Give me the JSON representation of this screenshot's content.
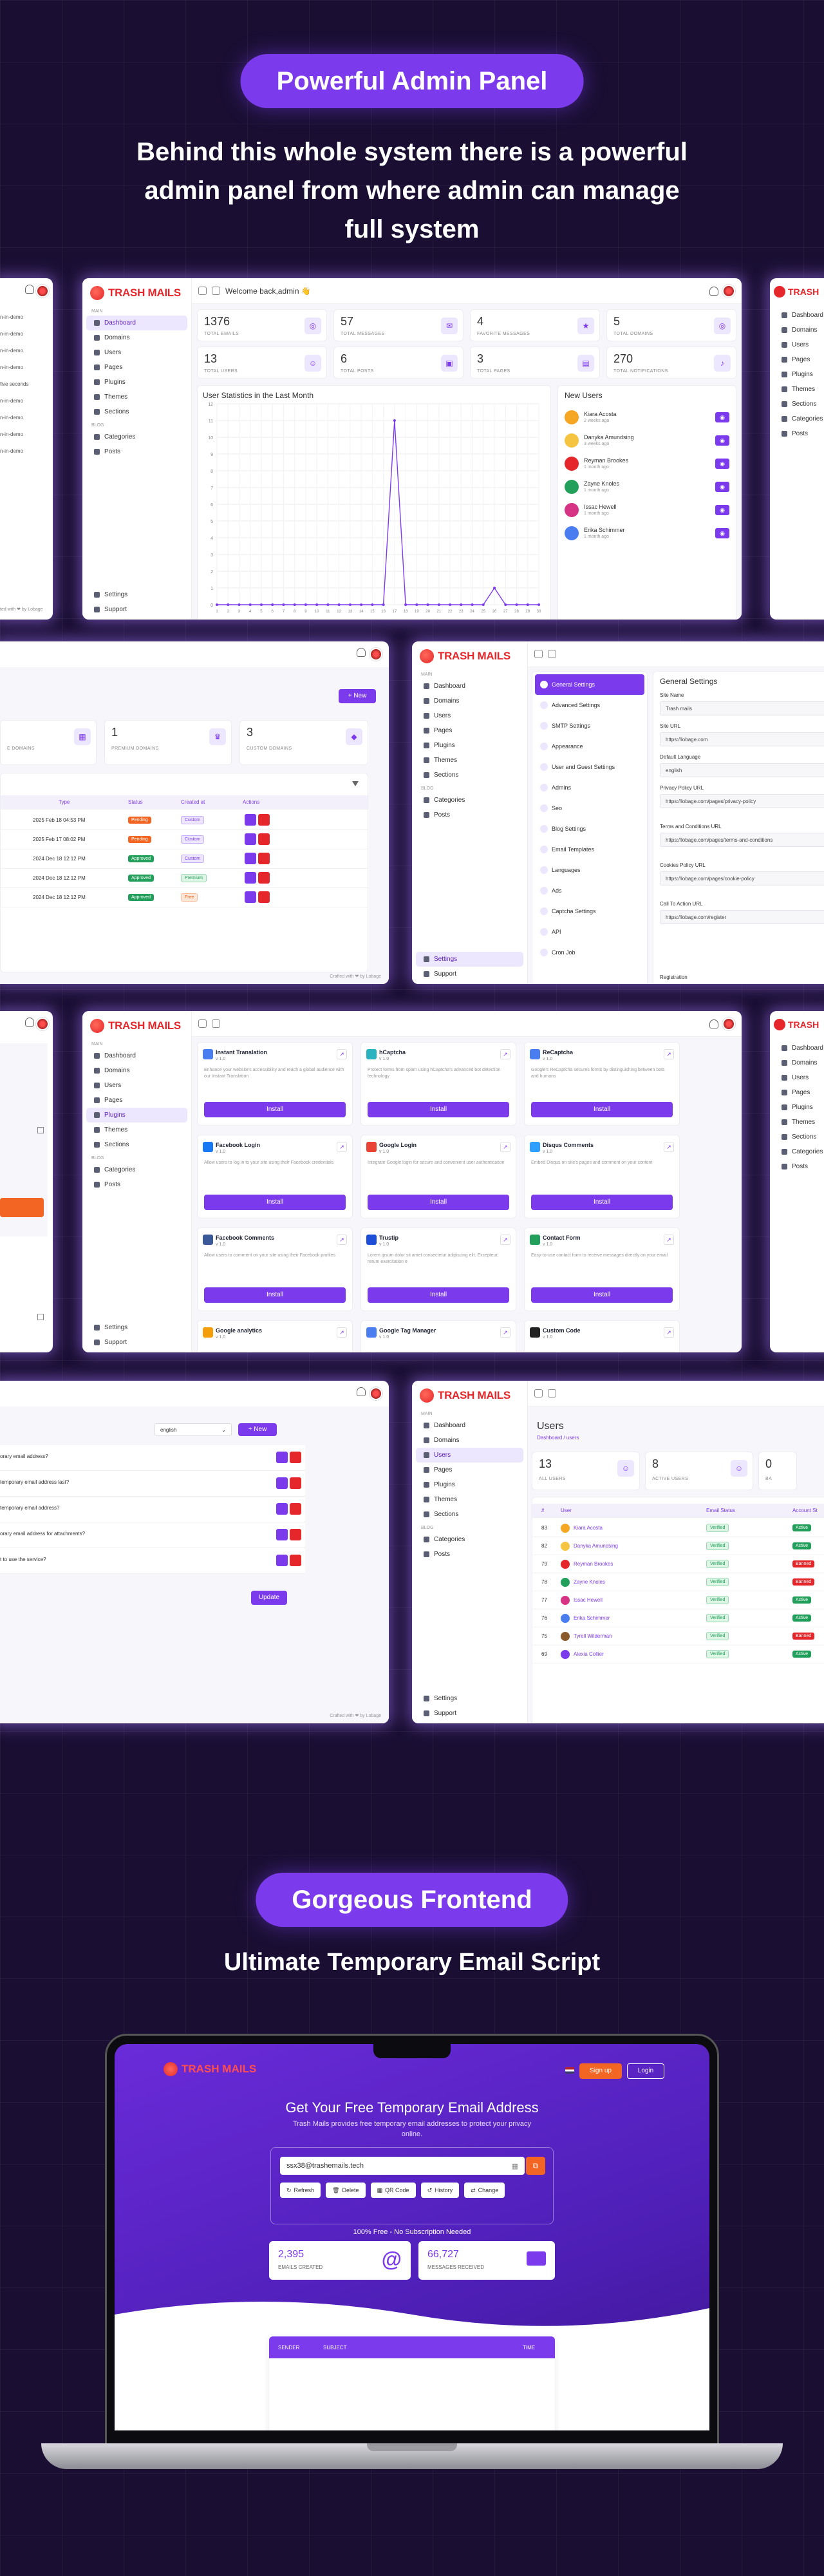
{
  "heading1": "Powerful Admin Panel",
  "subheading1_lines": [
    "Behind this whole system there is a powerful",
    "admin panel from where admin can manage",
    "full system"
  ],
  "logo_text": "TRASH MAILS",
  "sidebar": {
    "section_main": "MAIN",
    "section_blog": "BLOG",
    "items": [
      "Dashboard",
      "Domains",
      "Users",
      "Pages",
      "Plugins",
      "Themes",
      "Sections"
    ],
    "blog_items": [
      "Categories",
      "Posts"
    ],
    "bottom_items": [
      "Settings",
      "Support"
    ]
  },
  "left_strip_items": [
    "n-in-demo",
    "n-in-demo",
    "n-in-demo",
    "n-in-demo",
    "five seconds",
    "n-in-demo",
    "n-in-demo",
    "n-in-demo",
    "n-in-demo"
  ],
  "dashboard": {
    "welcome": "Welcome back,admin 👋",
    "stats": [
      {
        "value": "1376",
        "label": "TOTAL EMAILS"
      },
      {
        "value": "57",
        "label": "TOTAL MESSAGES"
      },
      {
        "value": "4",
        "label": "FAVORITE MESSAGES"
      },
      {
        "value": "5",
        "label": "TOTAL DOMAINS"
      },
      {
        "value": "13",
        "label": "TOTAL USERS"
      },
      {
        "value": "6",
        "label": "TOTAL POSTS"
      },
      {
        "value": "3",
        "label": "TOTAL PAGES"
      },
      {
        "value": "270",
        "label": "TOTAL NOTIFICATIONS"
      }
    ],
    "chart_title": "User Statistics in the Last Month",
    "new_users_title": "New Users",
    "new_users": [
      {
        "name": "Kiara Acosta",
        "time": "2 weeks ago"
      },
      {
        "name": "Danyka Amundsing",
        "time": "3 weeks ago"
      },
      {
        "name": "Reyman Brookes",
        "time": "1 month ago"
      },
      {
        "name": "Zayne Knoles",
        "time": "1 month ago"
      },
      {
        "name": "Issac Hewell",
        "time": "1 month ago"
      },
      {
        "name": "Erika Schimmer",
        "time": "1 month ago"
      }
    ]
  },
  "chart_data": {
    "type": "line",
    "x": [
      "1",
      "2",
      "3",
      "4",
      "5",
      "6",
      "7",
      "8",
      "9",
      "10",
      "11",
      "12",
      "13",
      "14",
      "15",
      "16",
      "17",
      "18",
      "19",
      "20",
      "21",
      "22",
      "23",
      "24",
      "25",
      "26",
      "27",
      "28",
      "29",
      "30"
    ],
    "series": [
      {
        "values": [
          0,
          0,
          0,
          0,
          0,
          0,
          0,
          0,
          0,
          0,
          0,
          0,
          0,
          0,
          0,
          0,
          11,
          0,
          0,
          0,
          0,
          0,
          0,
          0,
          0,
          1,
          0,
          0,
          0,
          0
        ]
      }
    ],
    "ylim": [
      0,
      12
    ],
    "yticks": [
      "12",
      "11",
      "10",
      "9",
      "8",
      "7",
      "6",
      "5",
      "4",
      "3",
      "2",
      "1",
      "0"
    ]
  },
  "domains": {
    "new_label": "+ New",
    "stats": [
      {
        "value": "1",
        "label": "PREMIUM DOMAINS"
      },
      {
        "value": "3",
        "label": "CUSTOM DOMAINS"
      }
    ],
    "stat_left_label": "E DOMAINS",
    "headers": [
      "Type",
      "Status",
      "Created at",
      "Actions"
    ],
    "rows": [
      {
        "date": "2025 Feb 18 04:53 PM",
        "status": "Pending",
        "type": "Custom"
      },
      {
        "date": "2025 Feb 17 08:02 PM",
        "status": "Pending",
        "type": "Custom"
      },
      {
        "date": "2024 Dec 18 12:12 PM",
        "status": "Approved",
        "type": "Custom"
      },
      {
        "date": "2024 Dec 18 12:12 PM",
        "status": "Approved",
        "type": "Premium"
      },
      {
        "date": "2024 Dec 18 12:12 PM",
        "status": "Approved",
        "type": "Free"
      }
    ],
    "footer": "Crafted with ❤ by Lobage"
  },
  "settings": {
    "menu": [
      "General Settings",
      "Advanced Settings",
      "SMTP Settings",
      "Appearance",
      "User and Guest Settings",
      "Admins",
      "Seo",
      "Blog Settings",
      "Email Templates",
      "Languages",
      "Ads",
      "Captcha Settings",
      "API",
      "Cron Job"
    ],
    "title": "General Settings",
    "fields": [
      {
        "label": "Site Name",
        "value": "Trash mails"
      },
      {
        "label": "Site URL",
        "value": "https://lobage.com"
      },
      {
        "label": "Default Language",
        "value": "english"
      },
      {
        "label": "Privacy Policy URL",
        "value": "https://lobage.com/pages/privacy-policy"
      },
      {
        "label": "Terms and Conditions URL",
        "value": "https://lobage.com/pages/terms-and-conditions"
      },
      {
        "label": "Cookies Policy URL",
        "value": "https://lobage.com/pages/cookie-policy"
      },
      {
        "label": "Call To Action URL",
        "value": "https://lobage.com/register"
      }
    ],
    "registration_label": "Registration"
  },
  "plugins": [
    {
      "name": "Instant Translation",
      "ver": "v 1.0",
      "desc": "Enhance your website's accessibility and reach a global audience with our Instant Translation",
      "color": "#4a7ef0"
    },
    {
      "name": "hCaptcha",
      "ver": "v 1.0",
      "desc": "Protect forms from spam using hCaptcha's advanced bot detection technology",
      "color": "#2bb3c0"
    },
    {
      "name": "ReCaptcha",
      "ver": "v 1.0",
      "desc": "Google's ReCaptcha secures forms by distinguishing between bots and humans",
      "color": "#4a7ef0"
    },
    {
      "name": "Facebook Login",
      "ver": "v 1.0",
      "desc": "Allow users to log in to your site using their Facebook credentials",
      "color": "#1877f2"
    },
    {
      "name": "Google Login",
      "ver": "v 1.0",
      "desc": "Integrate Google login for secure and convenient user authentication",
      "color": "#ea4335"
    },
    {
      "name": "Disqus Comments",
      "ver": "v 1.0",
      "desc": "Embed Disqus on site's pages and comment on your content",
      "color": "#2e9fff"
    },
    {
      "name": "Facebook Comments",
      "ver": "v 1.0",
      "desc": "Allow users to comment on your site using their Facebook profiles",
      "color": "#3b5998"
    },
    {
      "name": "Trustip",
      "ver": "v 1.0",
      "desc": "Lorem ipsum dolor sit amet consectetur adipiscing elit. Excepteur, rerum exercitation e",
      "color": "#1d4ed8"
    },
    {
      "name": "Contact Form",
      "ver": "v 1.0",
      "desc": "Easy-to-use contact form to receive messages directly on your email",
      "color": "#22a05b"
    },
    {
      "name": "Google analytics",
      "ver": "v 1.0",
      "desc": "",
      "color": "#f59e0b"
    },
    {
      "name": "Google Tag Manager",
      "ver": "v 1.0",
      "desc": "",
      "color": "#4a7ef0"
    },
    {
      "name": "Custom Code",
      "ver": "v 1.0",
      "desc": "",
      "color": "#222"
    }
  ],
  "install_label": "Install",
  "faq": {
    "language": "english",
    "new_label": "+ New",
    "questions": [
      "orary email address?",
      "temporary email address last?",
      "temporary email address?",
      "orary email address for attachments?",
      "t to use the service?"
    ],
    "update_label": "Update",
    "footer": "Crafted with ❤ by Lobage"
  },
  "users": {
    "title": "Users",
    "breadcrumb": "Dashboard / users",
    "stats": [
      {
        "value": "13",
        "label": "ALL USERS"
      },
      {
        "value": "8",
        "label": "ACTIVE USERS"
      },
      {
        "value": "0",
        "label": "BA"
      }
    ],
    "headers": [
      "#",
      "User",
      "Email Status",
      "Account St"
    ],
    "rows": [
      {
        "id": "83",
        "name": "Kiara Acosta",
        "email": "Verified",
        "acct": "Active"
      },
      {
        "id": "82",
        "name": "Danyka Amundsing",
        "email": "Verified",
        "acct": "Active"
      },
      {
        "id": "79",
        "name": "Reyman Brookes",
        "email": "Verified",
        "acct": "Banned"
      },
      {
        "id": "78",
        "name": "Zayne Knoles",
        "email": "Verified",
        "acct": "Banned"
      },
      {
        "id": "77",
        "name": "Issac Hewell",
        "email": "Verified",
        "acct": "Active"
      },
      {
        "id": "76",
        "name": "Erika Schimmer",
        "email": "Verified",
        "acct": "Active"
      },
      {
        "id": "75",
        "name": "Tyrell Wilderman",
        "email": "Verified",
        "acct": "Banned"
      },
      {
        "id": "69",
        "name": "Alexia Collier",
        "email": "Verified",
        "acct": "Active"
      }
    ]
  },
  "heading2": "Gorgeous Frontend",
  "subheading2": "Ultimate Temporary Email Script",
  "frontend": {
    "signup": "Sign up",
    "login": "Login",
    "hero_title": "Get Your Free Temporary Email Address",
    "hero_sub": "Trash Mails provides free temporary email addresses to protect your privacy online.",
    "email": "ssx38@trashemails.tech",
    "actions": [
      "Refresh",
      "Delete",
      "QR Code",
      "History",
      "Change"
    ],
    "tagline": "100% Free - No Subscription Needed",
    "stat1": {
      "value": "2,395",
      "label": "EMAILS CREATED"
    },
    "stat2": {
      "value": "66,727",
      "label": "MESSAGES RECEIVED"
    },
    "inbox_headers": [
      "SENDER",
      "SUBJECT",
      "TIME"
    ]
  }
}
